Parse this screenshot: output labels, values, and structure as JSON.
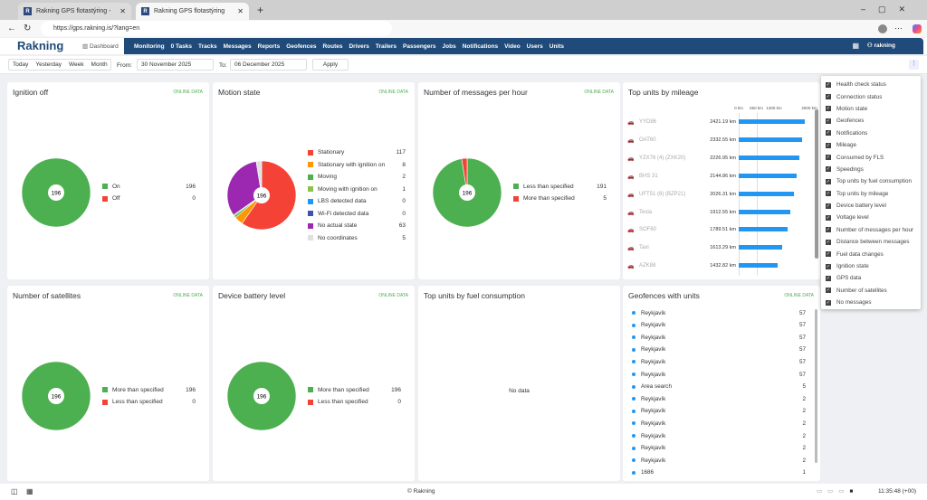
{
  "browser": {
    "tabs": [
      "Rakning GPS flotastýring -",
      "Rakning GPS flotastýring"
    ],
    "url": "https://gps.rakning.is/?lang=en"
  },
  "nav": {
    "logo": "Rakning",
    "dashboard": "Dashboard",
    "items": [
      "Monitoring",
      "0  Tasks",
      "Tracks",
      "Messages",
      "Reports",
      "Geofences",
      "Routes",
      "Drivers",
      "Trailers",
      "Passengers",
      "Jobs",
      "Notifications",
      "Video",
      "Users",
      "Units"
    ],
    "user": "rakning"
  },
  "filter": {
    "today": "Today",
    "yesterday": "Yesterday",
    "week": "Week",
    "month": "Month",
    "from_label": "From:",
    "from": "30 November 2025",
    "to_label": "To:",
    "to": "06 December 2025",
    "apply": "Apply"
  },
  "online": "ONLINE DATA",
  "widgets": {
    "ignition": {
      "title": "Ignition off",
      "total": "196",
      "items": [
        {
          "label": "On",
          "value": 196,
          "color": "#4caf50"
        },
        {
          "label": "Off",
          "value": 0,
          "color": "#f44336"
        }
      ]
    },
    "motion": {
      "title": "Motion state",
      "total": "196",
      "items": [
        {
          "label": "Stationary",
          "value": 117,
          "color": "#f44336"
        },
        {
          "label": "Stationary with ignition on",
          "value": 8,
          "color": "#ff9800"
        },
        {
          "label": "Moving",
          "value": 2,
          "color": "#4caf50"
        },
        {
          "label": "Moving with ignition on",
          "value": 1,
          "color": "#8bc34a"
        },
        {
          "label": "LBS detected data",
          "value": 0,
          "color": "#2196f3"
        },
        {
          "label": "Wi-Fi detected data",
          "value": 0,
          "color": "#3f51b5"
        },
        {
          "label": "No actual state",
          "value": 63,
          "color": "#9c27b0"
        },
        {
          "label": "No coordinates",
          "value": 5,
          "color": "#e0e0e0"
        }
      ]
    },
    "messages": {
      "title": "Number of messages per hour",
      "total": "196",
      "items": [
        {
          "label": "Less than specified",
          "value": 191,
          "color": "#4caf50"
        },
        {
          "label": "More than specified",
          "value": 5,
          "color": "#f44336"
        }
      ]
    },
    "satellites": {
      "title": "Number of satellites",
      "total": "196",
      "items": [
        {
          "label": "More than specified",
          "value": 196,
          "color": "#4caf50"
        },
        {
          "label": "Less than specified",
          "value": 0,
          "color": "#f44336"
        }
      ]
    },
    "battery": {
      "title": "Device battery level",
      "total": "196",
      "items": [
        {
          "label": "More than specified",
          "value": 196,
          "color": "#4caf50"
        },
        {
          "label": "Less than specified",
          "value": 0,
          "color": "#f44336"
        }
      ]
    },
    "fuel": {
      "title": "Top units by fuel consumption",
      "nodata": "No data"
    },
    "mileage": {
      "title": "Top units by mileage",
      "axis": [
        "0 km",
        "650 km",
        "1300 km",
        "2600 km"
      ],
      "max": 2600,
      "units": [
        {
          "name": "YYD86",
          "km": 2421.19,
          "label": "2421.19 km"
        },
        {
          "name": "OAT60",
          "km": 2332.55,
          "label": "2332.55 km"
        },
        {
          "name": "YZX76 (4) (ZXK20)",
          "km": 2226.95,
          "label": "2226.95 km"
        },
        {
          "name": "BHS 31",
          "km": 2144.86,
          "label": "2144.86 km"
        },
        {
          "name": "UFT51 (8) (BZP21)",
          "km": 2026.31,
          "label": "2026.31 km"
        },
        {
          "name": "Tesla",
          "km": 1912.55,
          "label": "1912.55 km"
        },
        {
          "name": "SOF60",
          "km": 1789.51,
          "label": "1789.51 km"
        },
        {
          "name": "Taxi",
          "km": 1613.29,
          "label": "1613.29 km"
        },
        {
          "name": "AZK88",
          "km": 1432.82,
          "label": "1432.82 km"
        }
      ]
    },
    "geofences": {
      "title": "Geofences with units",
      "rows": [
        [
          "Reykjavík",
          "57"
        ],
        [
          "Reykjavík",
          "57"
        ],
        [
          "Reykjavík",
          "57"
        ],
        [
          "Reykjavík",
          "57"
        ],
        [
          "Reykjavík",
          "57"
        ],
        [
          "Reykjavík",
          "57"
        ],
        [
          "Area search",
          "5"
        ],
        [
          "Reykjavík",
          "2"
        ],
        [
          "Reykjavík",
          "2"
        ],
        [
          "Reykjavík",
          "2"
        ],
        [
          "Reykjavík",
          "2"
        ],
        [
          "Reykjavík",
          "2"
        ],
        [
          "Reykjavík",
          "2"
        ],
        [
          "1686",
          "1"
        ]
      ]
    }
  },
  "menu": [
    "Health check status",
    "Connection status",
    "Motion state",
    "Geofences",
    "Notifications",
    "Mileage",
    "Consumed by FLS",
    "Speedings",
    "Top units by fuel consumption",
    "Top units by mileage",
    "Device battery level",
    "Voltage level",
    "Number of messages per hour",
    "Distance between messages",
    "Fuel data changes",
    "Ignition state",
    "GPS data",
    "Number of satellites",
    "No messages"
  ],
  "footer": {
    "copyright": "© Rakning",
    "time": "11:35:48 (+00)"
  }
}
